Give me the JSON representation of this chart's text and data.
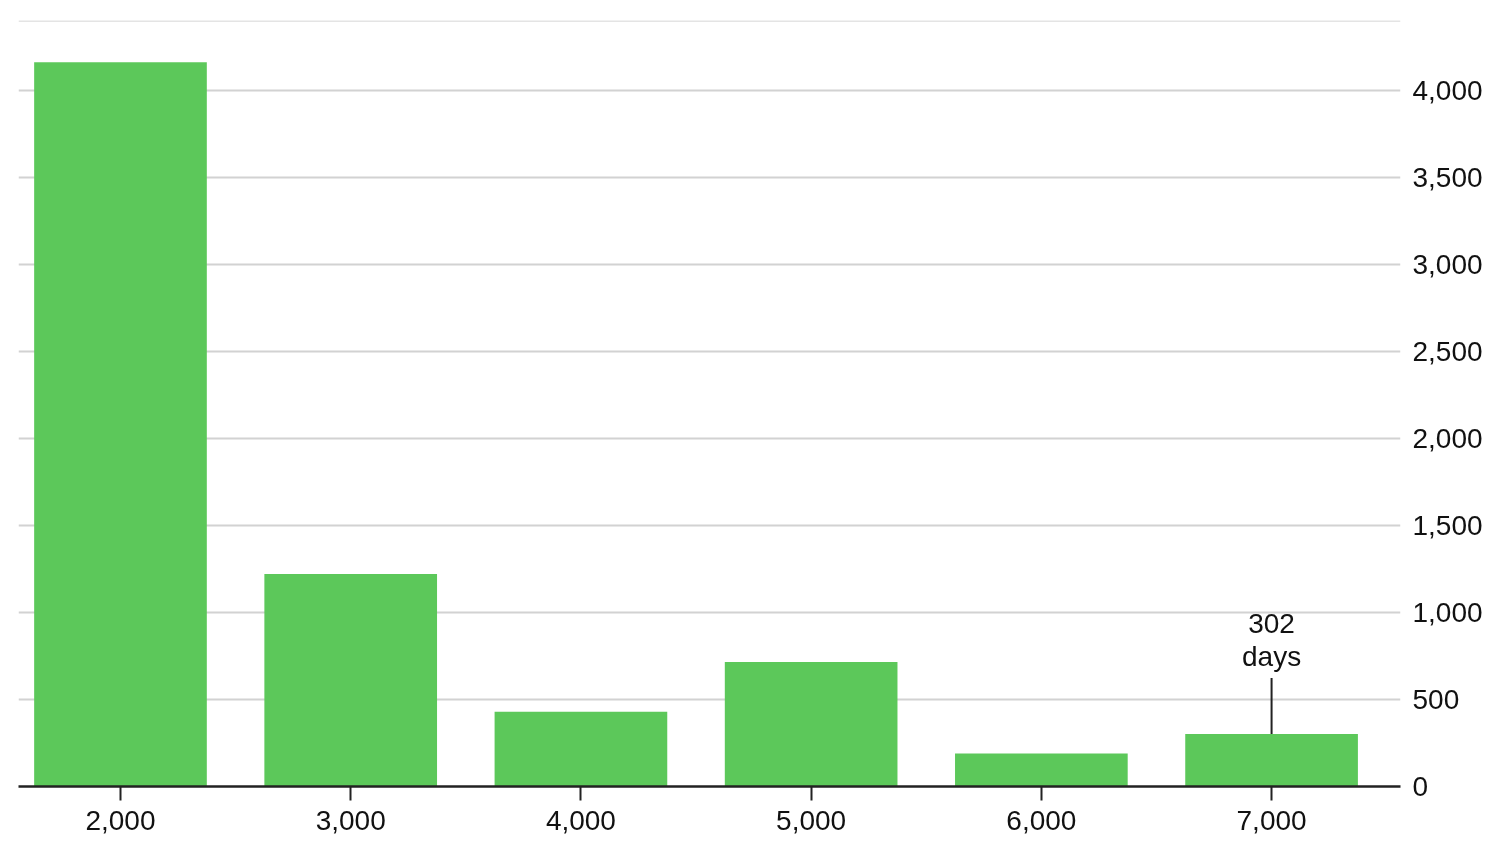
{
  "chart_data": {
    "type": "bar",
    "categories": [
      "2,000",
      "3,000",
      "4,000",
      "5,000",
      "6,000",
      "7,000"
    ],
    "values": [
      4160,
      1220,
      430,
      715,
      190,
      302
    ],
    "color": "#5cc85a",
    "value_labels": [
      null,
      null,
      null,
      null,
      null,
      "302 days"
    ],
    "ylim": [
      0,
      4400
    ],
    "yticks": [
      0,
      500,
      {
        "value": 1000,
        "label": "1,000"
      },
      {
        "value": 1500,
        "label": "1,500"
      },
      {
        "value": 2000,
        "label": "2,000"
      },
      {
        "value": 2500,
        "label": "2,500"
      },
      {
        "value": 3000,
        "label": "3,000"
      },
      {
        "value": 3500,
        "label": "3,500"
      },
      {
        "value": 4000,
        "label": "4,000"
      }
    ],
    "grid": "y"
  }
}
